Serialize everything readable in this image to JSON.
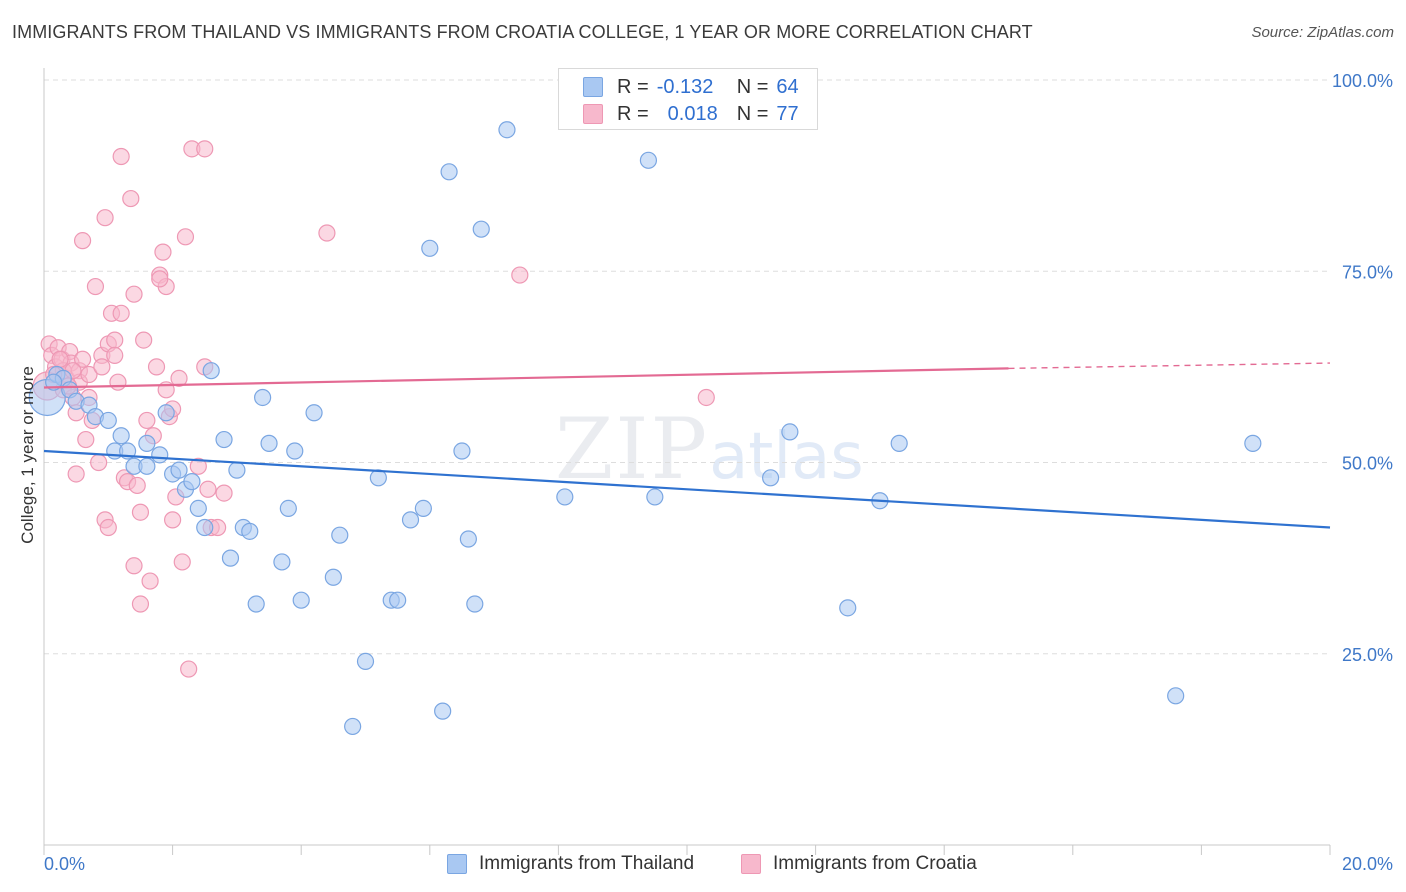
{
  "title": "IMMIGRANTS FROM THAILAND VS IMMIGRANTS FROM CROATIA COLLEGE, 1 YEAR OR MORE CORRELATION CHART",
  "source": "Source: ZipAtlas.com",
  "watermark": {
    "zip": "ZIP",
    "atlas": "atlas"
  },
  "legend": {
    "r_label": "R =",
    "n_label": "N =",
    "thailand": {
      "r": "-0.132",
      "n": "64"
    },
    "croatia": {
      "r": "0.018",
      "n": "77"
    }
  },
  "colors": {
    "thailand_fill": "#a9c8f2",
    "thailand_stroke": "#7aa6e2",
    "thailand_line": "#2f72d0",
    "croatia_fill": "#f7b8cc",
    "croatia_stroke": "#ee98b4",
    "croatia_line": "#e36a93",
    "axis_label": "#3f78c8",
    "grid": "#dddddd"
  },
  "chart_data": {
    "type": "scatter",
    "title": "IMMIGRANTS FROM THAILAND VS IMMIGRANTS FROM CROATIA COLLEGE, 1 YEAR OR MORE CORRELATION CHART",
    "xlabel": "",
    "ylabel": "College, 1 year or more",
    "xlim": [
      0,
      20
    ],
    "ylim": [
      0,
      100
    ],
    "x_tick_labels": [
      "0.0%",
      "20.0%"
    ],
    "y_ticks": [
      25,
      50,
      75,
      100
    ],
    "y_tick_labels": [
      "25.0%",
      "50.0%",
      "75.0%",
      "100.0%"
    ],
    "grid": true,
    "legend_position": "top-center",
    "series": [
      {
        "name": "Immigrants from Thailand",
        "r": -0.132,
        "n": 64,
        "trend": {
          "x": [
            0,
            20
          ],
          "y": [
            51.5,
            41.5
          ]
        },
        "points": [
          {
            "x": 0.05,
            "y": 58.5,
            "s": 18
          },
          {
            "x": 0.2,
            "y": 61.5
          },
          {
            "x": 0.3,
            "y": 61.0
          },
          {
            "x": 0.4,
            "y": 59.5
          },
          {
            "x": 0.5,
            "y": 58.0
          },
          {
            "x": 0.7,
            "y": 57.5
          },
          {
            "x": 0.8,
            "y": 56.0
          },
          {
            "x": 1.0,
            "y": 55.5
          },
          {
            "x": 1.2,
            "y": 53.5
          },
          {
            "x": 1.1,
            "y": 51.5
          },
          {
            "x": 1.3,
            "y": 51.5
          },
          {
            "x": 1.4,
            "y": 49.5
          },
          {
            "x": 1.6,
            "y": 49.5
          },
          {
            "x": 1.6,
            "y": 52.5
          },
          {
            "x": 1.8,
            "y": 51.0
          },
          {
            "x": 1.9,
            "y": 56.5
          },
          {
            "x": 2.0,
            "y": 48.5
          },
          {
            "x": 2.1,
            "y": 49.0
          },
          {
            "x": 2.2,
            "y": 46.5
          },
          {
            "x": 2.3,
            "y": 47.5
          },
          {
            "x": 2.4,
            "y": 44.0
          },
          {
            "x": 2.5,
            "y": 41.5
          },
          {
            "x": 2.6,
            "y": 62.0
          },
          {
            "x": 2.8,
            "y": 53.0
          },
          {
            "x": 3.0,
            "y": 49.0
          },
          {
            "x": 2.9,
            "y": 37.5
          },
          {
            "x": 3.1,
            "y": 41.5
          },
          {
            "x": 3.2,
            "y": 41.0
          },
          {
            "x": 3.3,
            "y": 31.5
          },
          {
            "x": 3.4,
            "y": 58.5
          },
          {
            "x": 3.5,
            "y": 52.5
          },
          {
            "x": 3.7,
            "y": 37.0
          },
          {
            "x": 3.8,
            "y": 44.0
          },
          {
            "x": 3.9,
            "y": 51.5
          },
          {
            "x": 4.0,
            "y": 32.0
          },
          {
            "x": 4.2,
            "y": 56.5
          },
          {
            "x": 4.6,
            "y": 40.5
          },
          {
            "x": 4.5,
            "y": 35.0
          },
          {
            "x": 5.0,
            "y": 24.0
          },
          {
            "x": 4.8,
            "y": 15.5
          },
          {
            "x": 5.2,
            "y": 48.0
          },
          {
            "x": 5.4,
            "y": 32.0
          },
          {
            "x": 5.5,
            "y": 32.0
          },
          {
            "x": 5.7,
            "y": 42.5
          },
          {
            "x": 5.9,
            "y": 44.0
          },
          {
            "x": 6.2,
            "y": 17.5
          },
          {
            "x": 6.3,
            "y": 88.0
          },
          {
            "x": 6.5,
            "y": 51.5
          },
          {
            "x": 6.6,
            "y": 40.0
          },
          {
            "x": 6.7,
            "y": 31.5
          },
          {
            "x": 6.8,
            "y": 80.5
          },
          {
            "x": 6.0,
            "y": 78.0
          },
          {
            "x": 7.2,
            "y": 93.5
          },
          {
            "x": 8.1,
            "y": 45.5
          },
          {
            "x": 9.4,
            "y": 89.5
          },
          {
            "x": 9.5,
            "y": 45.5
          },
          {
            "x": 11.3,
            "y": 48.0
          },
          {
            "x": 11.6,
            "y": 54.0
          },
          {
            "x": 12.5,
            "y": 31.0
          },
          {
            "x": 13.0,
            "y": 45.0
          },
          {
            "x": 13.3,
            "y": 52.5
          },
          {
            "x": 17.6,
            "y": 19.5
          },
          {
            "x": 18.8,
            "y": 52.5
          },
          {
            "x": 0.15,
            "y": 60.5
          }
        ]
      },
      {
        "name": "Immigrants from Croatia",
        "r": 0.018,
        "n": 77,
        "trend": {
          "x": [
            0,
            15.0
          ],
          "y": [
            59.8,
            62.3
          ]
        },
        "trend_dashed": {
          "x": [
            15.0,
            20
          ],
          "y": [
            62.3,
            63.0
          ]
        },
        "points": [
          {
            "x": 0.05,
            "y": 60.0,
            "s": 14
          },
          {
            "x": 0.08,
            "y": 65.5
          },
          {
            "x": 0.12,
            "y": 64.0
          },
          {
            "x": 0.18,
            "y": 62.5
          },
          {
            "x": 0.22,
            "y": 65.0
          },
          {
            "x": 0.28,
            "y": 63.5
          },
          {
            "x": 0.35,
            "y": 61.0
          },
          {
            "x": 0.3,
            "y": 59.5
          },
          {
            "x": 0.4,
            "y": 64.5
          },
          {
            "x": 0.42,
            "y": 63.0
          },
          {
            "x": 0.45,
            "y": 58.5
          },
          {
            "x": 0.5,
            "y": 56.5
          },
          {
            "x": 0.55,
            "y": 62.0
          },
          {
            "x": 0.6,
            "y": 79.0
          },
          {
            "x": 0.5,
            "y": 48.5
          },
          {
            "x": 0.55,
            "y": 60.5
          },
          {
            "x": 0.65,
            "y": 53.0
          },
          {
            "x": 0.7,
            "y": 61.5
          },
          {
            "x": 0.75,
            "y": 55.5
          },
          {
            "x": 0.8,
            "y": 73.0
          },
          {
            "x": 0.85,
            "y": 50.0
          },
          {
            "x": 0.9,
            "y": 64.0
          },
          {
            "x": 0.95,
            "y": 82.0
          },
          {
            "x": 1.0,
            "y": 65.5
          },
          {
            "x": 0.95,
            "y": 42.5
          },
          {
            "x": 1.0,
            "y": 41.5
          },
          {
            "x": 1.05,
            "y": 69.5
          },
          {
            "x": 1.1,
            "y": 66.0
          },
          {
            "x": 1.15,
            "y": 60.5
          },
          {
            "x": 1.2,
            "y": 69.5
          },
          {
            "x": 1.25,
            "y": 48.0
          },
          {
            "x": 1.3,
            "y": 47.5
          },
          {
            "x": 1.35,
            "y": 84.5
          },
          {
            "x": 1.4,
            "y": 72.0
          },
          {
            "x": 1.45,
            "y": 47.0
          },
          {
            "x": 1.5,
            "y": 43.5
          },
          {
            "x": 1.55,
            "y": 66.0
          },
          {
            "x": 1.6,
            "y": 55.5
          },
          {
            "x": 1.65,
            "y": 34.5
          },
          {
            "x": 1.7,
            "y": 53.5
          },
          {
            "x": 1.75,
            "y": 62.5
          },
          {
            "x": 1.8,
            "y": 74.5
          },
          {
            "x": 1.85,
            "y": 77.5
          },
          {
            "x": 1.9,
            "y": 73.0
          },
          {
            "x": 1.95,
            "y": 56.0
          },
          {
            "x": 2.0,
            "y": 57.0
          },
          {
            "x": 2.05,
            "y": 45.5
          },
          {
            "x": 2.1,
            "y": 61.0
          },
          {
            "x": 2.15,
            "y": 37.0
          },
          {
            "x": 2.2,
            "y": 79.5
          },
          {
            "x": 2.25,
            "y": 23.0
          },
          {
            "x": 2.3,
            "y": 91.0
          },
          {
            "x": 2.4,
            "y": 49.5
          },
          {
            "x": 2.5,
            "y": 62.5
          },
          {
            "x": 2.55,
            "y": 46.5
          },
          {
            "x": 2.6,
            "y": 41.5
          },
          {
            "x": 1.2,
            "y": 90.0
          },
          {
            "x": 2.0,
            "y": 42.5
          },
          {
            "x": 1.5,
            "y": 31.5
          },
          {
            "x": 1.4,
            "y": 36.5
          },
          {
            "x": 1.8,
            "y": 74.0
          },
          {
            "x": 2.8,
            "y": 46.0
          },
          {
            "x": 2.7,
            "y": 41.5
          },
          {
            "x": 2.5,
            "y": 91.0
          },
          {
            "x": 0.7,
            "y": 58.5
          },
          {
            "x": 0.9,
            "y": 62.5
          },
          {
            "x": 0.3,
            "y": 62.0
          },
          {
            "x": 0.15,
            "y": 61.5
          },
          {
            "x": 0.6,
            "y": 63.5
          },
          {
            "x": 1.1,
            "y": 64.0
          },
          {
            "x": 1.9,
            "y": 59.5
          },
          {
            "x": 4.4,
            "y": 80.0
          },
          {
            "x": 7.4,
            "y": 74.5
          },
          {
            "x": 10.3,
            "y": 58.5
          },
          {
            "x": 0.25,
            "y": 63.5
          },
          {
            "x": 0.45,
            "y": 62.0
          },
          {
            "x": 0.38,
            "y": 60.0
          }
        ]
      }
    ]
  }
}
